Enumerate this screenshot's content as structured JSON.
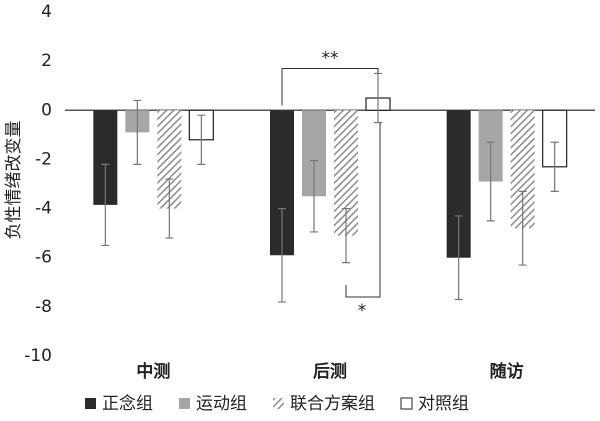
{
  "chart_data": {
    "type": "bar",
    "y_label": "负性情绪改变量",
    "categories": [
      "中测",
      "后测",
      "随访"
    ],
    "series": [
      {
        "name": "正念组",
        "color": "#2b2b2b",
        "values": [
          -3.85,
          -5.9,
          -6.0
        ],
        "errors": [
          1.65,
          1.9,
          1.7
        ]
      },
      {
        "name": "运动组",
        "color": "#a6a6a6",
        "values": [
          -0.9,
          -3.5,
          -2.9
        ],
        "errors": [
          1.3,
          1.45,
          1.6
        ]
      },
      {
        "name": "联合方案组",
        "color": "#8c8c8c",
        "pattern": "hatch",
        "values": [
          -4.0,
          -5.1,
          -4.8
        ],
        "errors": [
          1.2,
          1.1,
          1.5
        ]
      },
      {
        "name": "对照组",
        "color": "#ffffff",
        "values": [
          -1.2,
          0.5,
          -2.3
        ],
        "errors": [
          1.0,
          1.0,
          1.0
        ]
      }
    ],
    "annotations": [
      "**",
      "*"
    ],
    "ylim": [
      -10,
      4
    ],
    "yticks": [
      -10,
      -8,
      -6,
      -4,
      -2,
      0,
      2,
      4
    ],
    "grid": false
  }
}
